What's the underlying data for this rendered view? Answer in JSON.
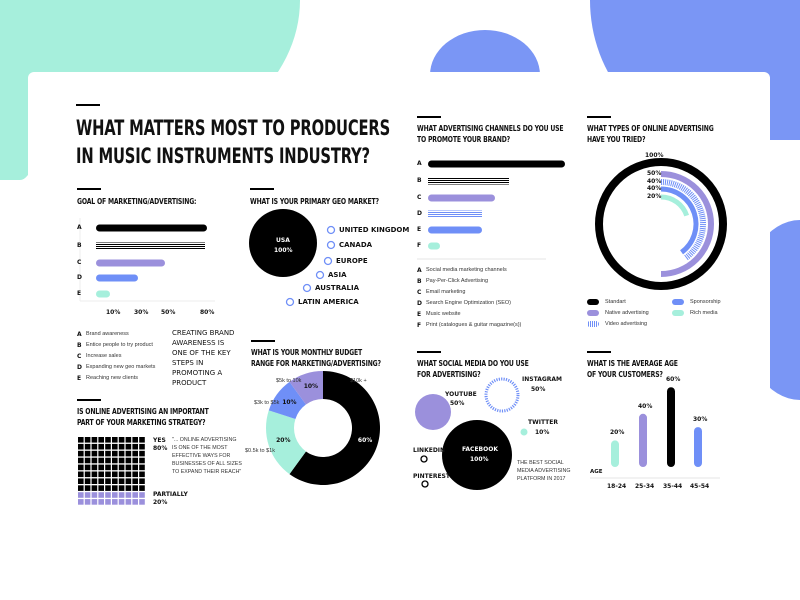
{
  "title": [
    "WHAT MATTERS MOST TO PRODUCERS",
    "IN MUSIC INSTRUMENTS INDUSTRY?"
  ],
  "colors": {
    "black": "#000000",
    "purple": "#9b90dc",
    "blue": "#6f8ff7",
    "mint": "#a6efdc",
    "bg_mint": "#a6efdc",
    "bg_blue": "#7a96f5",
    "bg_purple": "#9b90dc"
  },
  "chart_data": [
    {
      "id": "goal",
      "type": "bar",
      "title": "GOAL OF MARKETING/ADVERTISING:",
      "categories": [
        "A",
        "B",
        "C",
        "D",
        "E"
      ],
      "values": [
        80,
        80,
        50,
        30,
        10
      ],
      "xticks": [
        "10%",
        "30%",
        "50%",
        "80%"
      ],
      "legend": [
        "Brand awareness",
        "Entice people to try product",
        "Increase sales",
        "Expanding new geo markets",
        "Reaching new clients"
      ],
      "note": [
        "CREATING BRAND",
        "AWARENESS IS",
        "ONE OF THE KEY",
        "STEPS IN",
        "PROMOTING A",
        "PRODUCT"
      ]
    },
    {
      "id": "geo",
      "type": "bubble",
      "title": "WHAT IS YOUR PRIMARY GEO MARKET?",
      "main": {
        "label": "USA",
        "value": "100%"
      },
      "others": [
        "UNITED KINGDOM",
        "CANADA",
        "EUROPE",
        "ASIA",
        "AUSTRALIA",
        "LATIN AMERICA"
      ]
    },
    {
      "id": "budget",
      "type": "pie",
      "title": [
        "WHAT IS YOUR MONTHLY BUDGET",
        "RANGE FOR MARKETING/ADVERTISING?"
      ],
      "categories": [
        "$10k +",
        "$0.5k to $1k",
        "$3k to $5k",
        "$5k to 10k"
      ],
      "values": [
        60,
        20,
        10,
        10
      ]
    },
    {
      "id": "online",
      "type": "waffle",
      "title": [
        "IS ONLINE ADVERTISING AN IMPORTANT",
        "PART OF YOUR MARKETING STRATEGY?"
      ],
      "categories": [
        "YES",
        "PARTIALLY"
      ],
      "values": [
        80,
        20
      ],
      "labels": [
        "80%",
        "20%"
      ],
      "quote": [
        "\"... ONLINE ADVERTISING",
        "IS ONE OF THE MOST",
        "EFFECTIVE WAYS FOR",
        "BUSINESSES OF ALL SIZES",
        "TO EXPAND THEIR REACH\""
      ]
    },
    {
      "id": "channels",
      "type": "bar",
      "title": [
        "WHAT ADVERTISING CHANNELS DO YOU USE",
        "TO PROMOTE YOUR BRAND?"
      ],
      "categories": [
        "A",
        "B",
        "C",
        "D",
        "E",
        "F"
      ],
      "values": [
        100,
        60,
        50,
        40,
        40,
        10
      ],
      "legend": [
        "Social media marketing channels",
        "Pay-Per-Click Advertising",
        "Email marketing",
        "Search Engine Optimization (SEO)",
        "Music website",
        "Print (catalogues & guitar magazine(s))"
      ]
    },
    {
      "id": "types",
      "type": "radial-bar",
      "title": [
        "WHAT TYPES OF ONLINE ADVERTISING",
        "HAVE YOU TRIED?"
      ],
      "categories": [
        "Standart",
        "Native advertising",
        "Video advertising",
        "Sponsorship",
        "Rich media"
      ],
      "values": [
        100,
        50,
        40,
        40,
        20
      ],
      "labels": [
        "100%",
        "50%",
        "40%",
        "40%",
        "20%"
      ]
    },
    {
      "id": "social",
      "type": "bubble",
      "title": [
        "WHAT SOCIAL MEDIA DO YOU USE",
        "FOR ADVERTISING?"
      ],
      "categories": [
        "YOUTUBE",
        "INSTAGRAM",
        "TWITTER",
        "FACEBOOK",
        "LINKEDIN",
        "PINTEREST"
      ],
      "labels": [
        "50%",
        "50%",
        "10%",
        "100%",
        "",
        ""
      ],
      "note": [
        "THE BEST SOCIAL",
        "MEDIA ADVERTISING",
        "PLATFORM IN 2017"
      ]
    },
    {
      "id": "age",
      "type": "bar",
      "title": [
        "WHAT IS THE AVERAGE AGE",
        "OF YOUR CUSTOMERS?"
      ],
      "xlabel": "AGE",
      "categories": [
        "18-24",
        "25-34",
        "35-44",
        "45-54"
      ],
      "values": [
        20,
        40,
        60,
        30
      ],
      "labels": [
        "20%",
        "40%",
        "60%",
        "30%"
      ]
    }
  ]
}
